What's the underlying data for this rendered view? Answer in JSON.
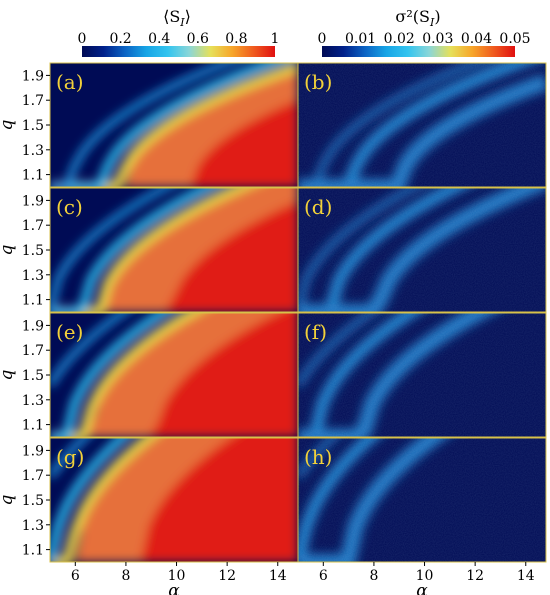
{
  "chart_data": {
    "type": "heatmap",
    "xlabel": "α",
    "ylabel": "q",
    "xlim": [
      5,
      14.8
    ],
    "ylim": [
      1.0,
      2.0
    ],
    "x_ticks": [
      "6",
      "8",
      "10",
      "12",
      "14"
    ],
    "y_ticks": [
      "1.9",
      "1.7",
      "1.5",
      "1.3",
      "1.1"
    ],
    "x_tick_values": [
      6,
      8,
      10,
      12,
      14
    ],
    "y_tick_values": [
      1.9,
      1.7,
      1.5,
      1.3,
      1.1
    ],
    "colorbars": [
      {
        "title": "⟨S_I⟩",
        "title_main": "⟨S",
        "title_sub": "I",
        "title_end": "⟩",
        "ticks": [
          "0",
          "0.2",
          "0.4",
          "0.6",
          "0.8",
          "1"
        ],
        "range": [
          0,
          1
        ]
      },
      {
        "title": "σ²(S_I)",
        "title_main": "σ²(S",
        "title_sub": "I",
        "title_end": ")",
        "ticks": [
          "0",
          "0.01",
          "0.02",
          "0.03",
          "0.04",
          "0.05"
        ],
        "range": [
          0,
          0.05
        ]
      }
    ],
    "colormap": [
      "#000b55",
      "#00208a",
      "#0b63c4",
      "#17a5e6",
      "#33c4ef",
      "#8ad6d8",
      "#e6e05a",
      "#f7a62a",
      "#f05b1f",
      "#e01010"
    ],
    "panels": [
      {
        "label": "(a)",
        "quantity": "mean",
        "row": 0,
        "col": 0
      },
      {
        "label": "(b)",
        "quantity": "variance",
        "row": 0,
        "col": 1
      },
      {
        "label": "(c)",
        "quantity": "mean",
        "row": 1,
        "col": 0
      },
      {
        "label": "(d)",
        "quantity": "variance",
        "row": 1,
        "col": 1
      },
      {
        "label": "(e)",
        "quantity": "mean",
        "row": 2,
        "col": 0
      },
      {
        "label": "(f)",
        "quantity": "variance",
        "row": 2,
        "col": 1
      },
      {
        "label": "(g)",
        "quantity": "mean",
        "row": 3,
        "col": 0
      },
      {
        "label": "(h)",
        "quantity": "variance",
        "row": 3,
        "col": 1
      }
    ]
  }
}
